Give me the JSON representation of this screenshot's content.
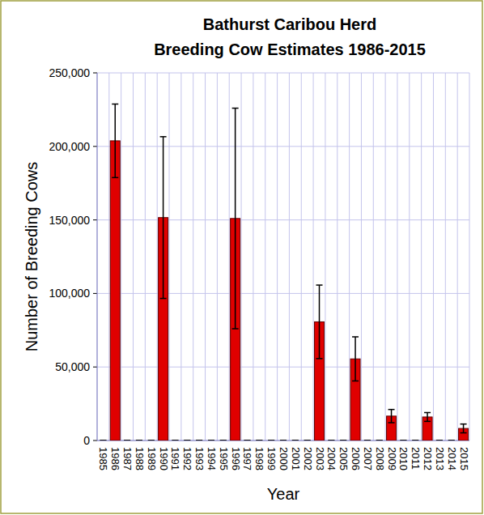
{
  "chart_data": {
    "type": "bar",
    "title": "Bathurst Caribou Herd",
    "subtitle": "Breeding Cow Estimates 1986-2015",
    "x_label": "Year",
    "y_label": "Number of Breeding Cows",
    "categories": [
      "1985",
      "1986",
      "1987",
      "1988",
      "1989",
      "1990",
      "1991",
      "1992",
      "1993",
      "1994",
      "1995",
      "1996",
      "1997",
      "1998",
      "1999",
      "2000",
      "2001",
      "2002",
      "2003",
      "2004",
      "2005",
      "2006",
      "2007",
      "2008",
      "2009",
      "2010",
      "2011",
      "2012",
      "2013",
      "2014",
      "2015"
    ],
    "values": [
      0,
      203800,
      0,
      0,
      0,
      151600,
      0,
      0,
      0,
      0,
      0,
      151000,
      0,
      0,
      0,
      0,
      0,
      0,
      80700,
      0,
      0,
      55500,
      0,
      0,
      16600,
      0,
      0,
      16000,
      0,
      0,
      8200
    ],
    "errors": [
      0,
      25000,
      0,
      0,
      0,
      55000,
      0,
      0,
      0,
      0,
      0,
      75000,
      0,
      0,
      0,
      0,
      0,
      0,
      25000,
      0,
      0,
      15000,
      0,
      0,
      4500,
      0,
      0,
      3000,
      0,
      0,
      3000
    ],
    "color": "#e00000",
    "ylim": [
      0,
      250000
    ],
    "yticks": [
      {
        "value": 0,
        "label": "0"
      },
      {
        "value": 50000,
        "label": "50,000"
      },
      {
        "value": 100000,
        "label": "100,000"
      },
      {
        "value": 150000,
        "label": "150,000"
      },
      {
        "value": 200000,
        "label": "200,000"
      },
      {
        "value": 250000,
        "label": "250,000"
      }
    ],
    "grid": true
  }
}
